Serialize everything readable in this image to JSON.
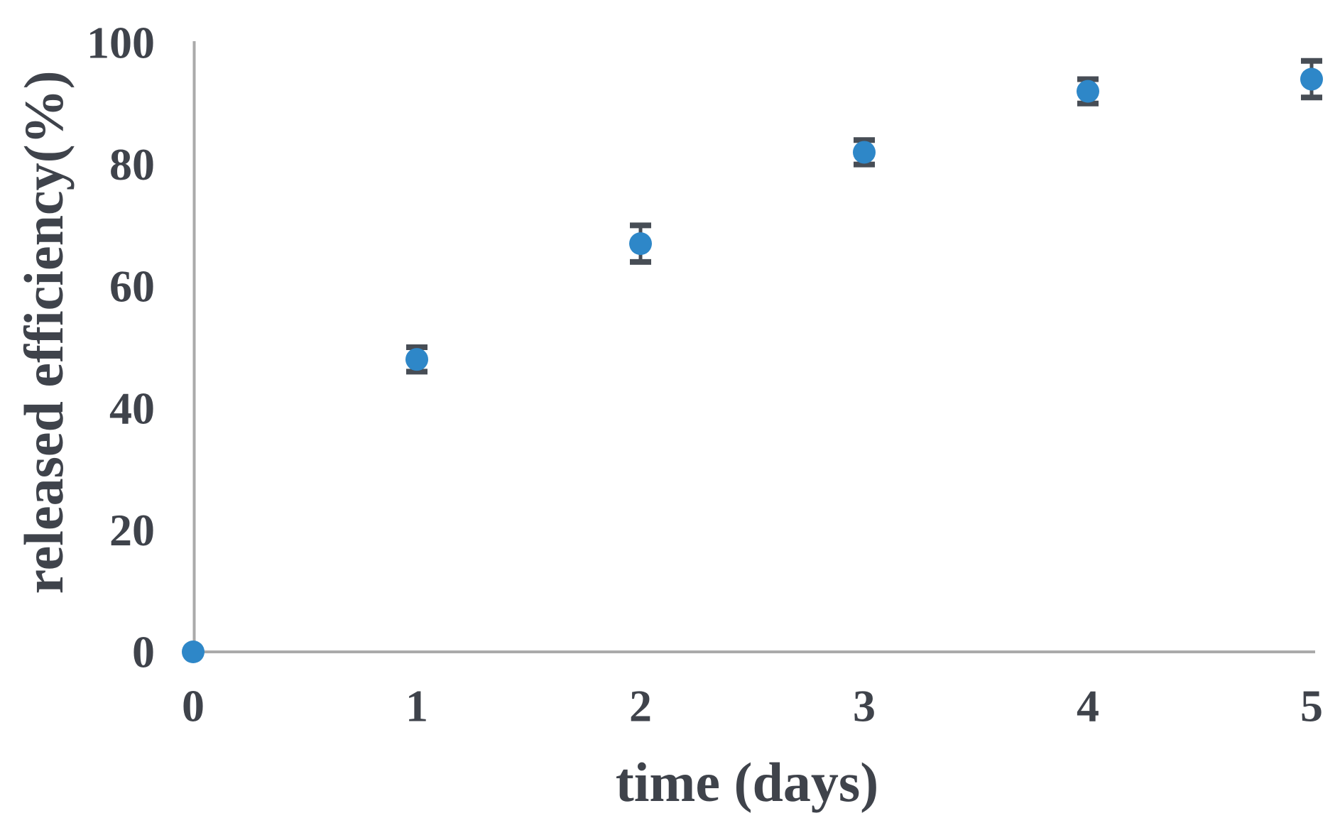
{
  "chart_data": {
    "type": "scatter",
    "title": "",
    "xlabel": "time (days)",
    "ylabel": "released efficiency(%)",
    "x": [
      0,
      1,
      2,
      3,
      4,
      5
    ],
    "y": [
      0,
      48,
      67,
      82,
      92,
      94
    ],
    "yerr": [
      0,
      2,
      3,
      2,
      2,
      3
    ],
    "xticks": [
      0,
      1,
      2,
      3,
      4,
      5
    ],
    "yticks": [
      0,
      20,
      40,
      60,
      80,
      100
    ],
    "xlim": [
      0,
      5
    ],
    "ylim": [
      0,
      100
    ],
    "grid": false,
    "legend": null,
    "error_bar_caps": true,
    "colors": {
      "marker": "#2e87c8",
      "errorbar": "#474d55",
      "axis": "#aaaaaa",
      "text": "#3f434b"
    }
  }
}
